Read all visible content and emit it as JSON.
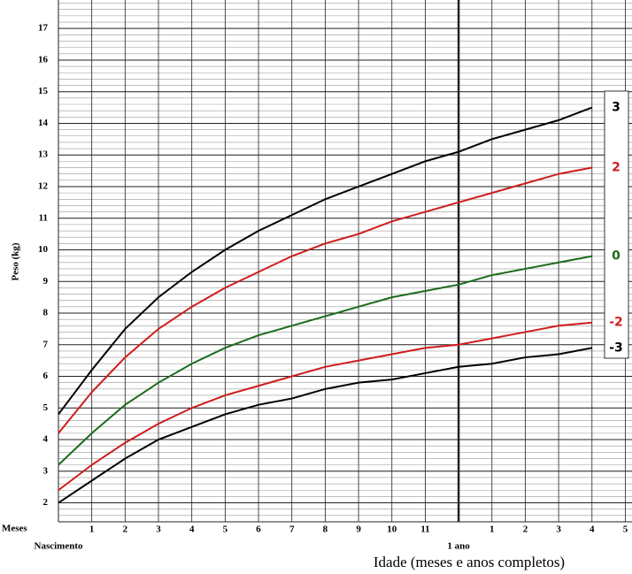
{
  "chart_data": {
    "type": "line",
    "y_label": "Peso (kg)",
    "x_label": "Idade (meses e anos completos)",
    "x_unit_label": "Meses",
    "x_origin_label": "Nascimento",
    "x": [
      0,
      1,
      2,
      3,
      4,
      5,
      6,
      7,
      8,
      9,
      10,
      11,
      12,
      13,
      14,
      15,
      16
    ],
    "series": [
      {
        "name": "3",
        "color": "#000000",
        "values": [
          4.8,
          6.2,
          7.5,
          8.5,
          9.3,
          10.0,
          10.6,
          11.1,
          11.6,
          12.0,
          12.4,
          12.8,
          13.1,
          13.5,
          13.8,
          14.1,
          14.5
        ]
      },
      {
        "name": "2",
        "color": "#d01c1c",
        "values": [
          4.2,
          5.5,
          6.6,
          7.5,
          8.2,
          8.8,
          9.3,
          9.8,
          10.2,
          10.5,
          10.9,
          11.2,
          11.5,
          11.8,
          12.1,
          12.4,
          12.6
        ]
      },
      {
        "name": "0",
        "color": "#1a6b1a",
        "values": [
          3.2,
          4.2,
          5.1,
          5.8,
          6.4,
          6.9,
          7.3,
          7.6,
          7.9,
          8.2,
          8.5,
          8.7,
          8.9,
          9.2,
          9.4,
          9.6,
          9.8
        ]
      },
      {
        "name": "-2",
        "color": "#d01c1c",
        "values": [
          2.4,
          3.2,
          3.9,
          4.5,
          5.0,
          5.4,
          5.7,
          6.0,
          6.3,
          6.5,
          6.7,
          6.9,
          7.0,
          7.2,
          7.4,
          7.6,
          7.7
        ]
      },
      {
        "name": "-3",
        "color": "#000000",
        "values": [
          2.0,
          2.7,
          3.4,
          4.0,
          4.4,
          4.8,
          5.1,
          5.3,
          5.6,
          5.8,
          5.9,
          6.1,
          6.3,
          6.4,
          6.6,
          6.7,
          6.9
        ]
      }
    ],
    "xlim": [
      0,
      17.2
    ],
    "ylim": [
      1.4,
      17.9
    ],
    "xticks": [
      1,
      2,
      3,
      4,
      5,
      6,
      7,
      8,
      9,
      10,
      11,
      {
        "value": 12,
        "label": "1 ano"
      },
      {
        "value": 13,
        "label": "1"
      },
      {
        "value": 14,
        "label": "2"
      },
      {
        "value": 15,
        "label": "3"
      },
      {
        "value": 16,
        "label": "4"
      },
      {
        "value": 17,
        "label": "5"
      }
    ],
    "yticks": [
      2,
      3,
      4,
      5,
      6,
      7,
      8,
      9,
      10,
      11,
      12,
      13,
      14,
      15,
      16,
      17
    ],
    "grid": true
  }
}
